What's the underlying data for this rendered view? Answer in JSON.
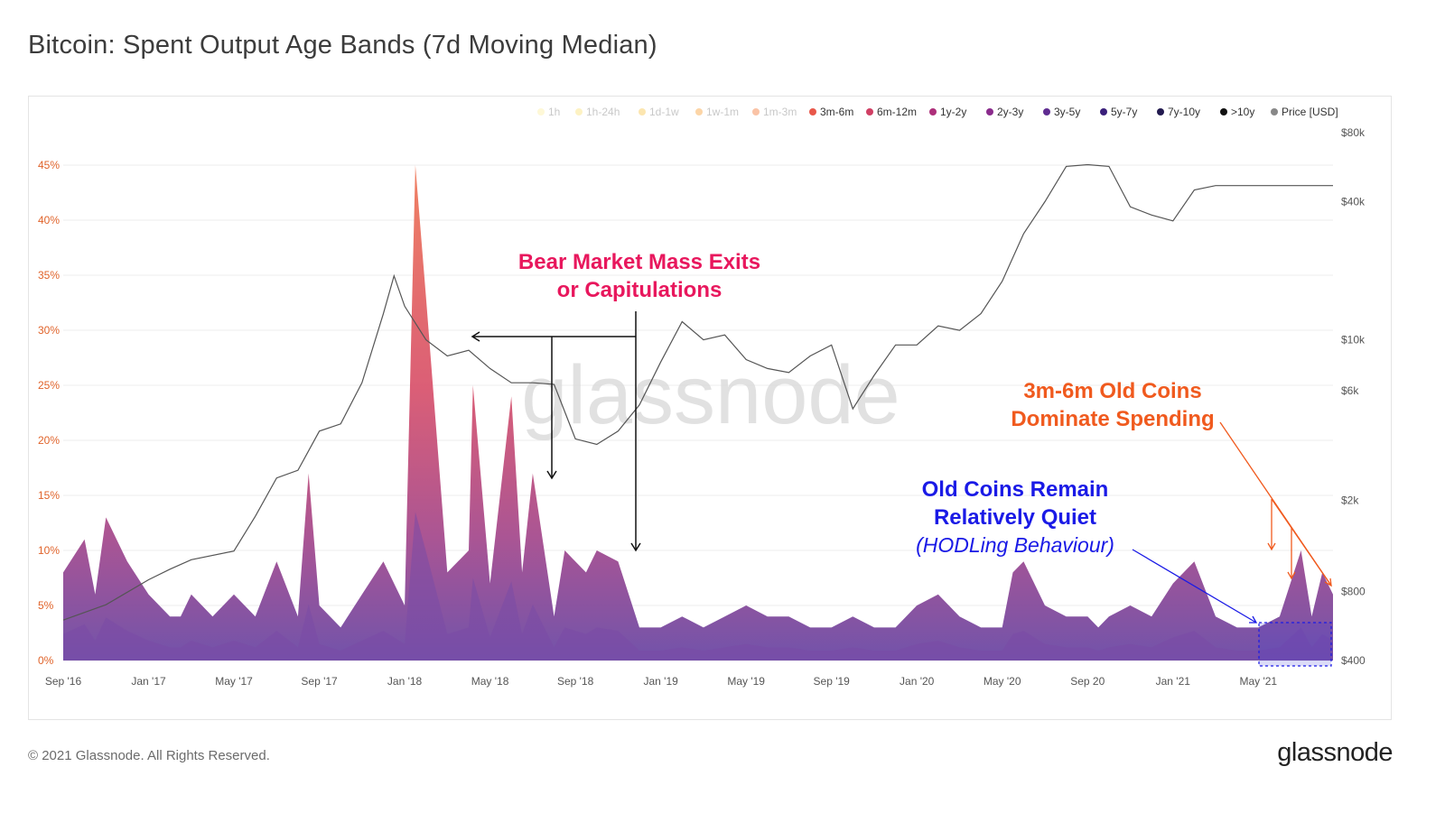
{
  "title": "Bitcoin: Spent Output Age Bands (7d Moving Median)",
  "footer": {
    "copyright": "© 2021 Glassnode. All Rights Reserved.",
    "logo": "glassnode"
  },
  "watermark": "glassnode",
  "colors": {
    "price_line": "#5a5a5a",
    "band_3m6m": "#e8735f",
    "band_6m12m": "#d6567a",
    "band_1y2y": "#b34c8c",
    "band_2y3y": "#8e4e9e",
    "band_3y5y": "#6a4ca8",
    "annotation_bear": "#e8175d",
    "annotation_3m6m": "#f05a1e",
    "annotation_hodl": "#1a1ae6"
  },
  "annotations": {
    "bear_line1": "Bear Market Mass Exits",
    "bear_line2": "or Capitulations",
    "coins_line1": "3m-6m Old Coins",
    "coins_line2": "Dominate Spending",
    "quiet_line1": "Old Coins Remain",
    "quiet_line2": "Relatively Quiet",
    "quiet_line3": "(HODLing Behaviour)"
  },
  "chart_data": {
    "type": "area",
    "title": "Bitcoin: Spent Output Age Bands (7d Moving Median)",
    "legend": [
      {
        "name": "1h",
        "color": "#fdf0a6",
        "faded": true
      },
      {
        "name": "1h-24h",
        "color": "#fbe27a",
        "faded": true
      },
      {
        "name": "1d-1w",
        "color": "#f9c74f",
        "faded": true
      },
      {
        "name": "1w-1m",
        "color": "#f8a23c",
        "faded": true
      },
      {
        "name": "1m-3m",
        "color": "#f47a3a",
        "faded": true
      },
      {
        "name": "3m-6m",
        "color": "#e8574a",
        "faded": false
      },
      {
        "name": "6m-12m",
        "color": "#d03f64",
        "faded": false
      },
      {
        "name": "1y-2y",
        "color": "#ad2f7a",
        "faded": false
      },
      {
        "name": "2y-3y",
        "color": "#8a2b8c",
        "faded": false
      },
      {
        "name": "3y-5y",
        "color": "#5f2c91",
        "faded": false
      },
      {
        "name": "5y-7y",
        "color": "#3a1f7a",
        "faded": false
      },
      {
        "name": "7y-10y",
        "color": "#221a4f",
        "faded": false
      },
      {
        "name": ">10y",
        "color": "#111111",
        "faded": false
      },
      {
        "name": "Price [USD]",
        "color": "#888888",
        "faded": false
      }
    ],
    "legend_placement": "top-right",
    "x_tick_labels": [
      "Sep '16",
      "Jan '17",
      "May '17",
      "Sep '17",
      "Jan '18",
      "May '18",
      "Sep '18",
      "Jan '19",
      "May '19",
      "Sep '19",
      "Jan '20",
      "May '20",
      "Sep 20",
      "Jan '21",
      "May '21"
    ],
    "y_left_tick_labels": [
      "0%",
      "5%",
      "10%",
      "15%",
      "20%",
      "25%",
      "30%",
      "35%",
      "40%",
      "45%"
    ],
    "y_left_range": [
      0,
      45
    ],
    "y_right_tick_labels": [
      "$400",
      "$800",
      "$2k",
      "$6k",
      "$10k",
      "$40k",
      "$80k"
    ],
    "y_right_values": [
      400,
      800,
      2000,
      6000,
      10000,
      40000,
      80000
    ],
    "y_right_scale": "log",
    "x_range_months": [
      0,
      59.5
    ],
    "grid": true,
    "spent_share_3m6m_approx": {
      "x_months": [
        0,
        1,
        1.5,
        2,
        3,
        4,
        5,
        5.5,
        6,
        7,
        8,
        9,
        10,
        11,
        11.5,
        12,
        13,
        14,
        15,
        16,
        16.5,
        17,
        18,
        19,
        19.2,
        20,
        21,
        21.5,
        22,
        23,
        23.5,
        24,
        24.5,
        25,
        26,
        27,
        28,
        29,
        30,
        31,
        32,
        33,
        34,
        35,
        36,
        37,
        38,
        39,
        40,
        41,
        42,
        43,
        44,
        44.5,
        45,
        46,
        47,
        48,
        48.5,
        49,
        50,
        51,
        52,
        53,
        54,
        55,
        56,
        57,
        58,
        58.5,
        59,
        59.5
      ],
      "total_pct": [
        8,
        11,
        6,
        13,
        9,
        6,
        4,
        4,
        6,
        4,
        6,
        4,
        9,
        4,
        17,
        5,
        3,
        6,
        9,
        5,
        45,
        33,
        8,
        10,
        25,
        7,
        24,
        8,
        17,
        4,
        10,
        9,
        8,
        10,
        9,
        3,
        3,
        4,
        3,
        4,
        5,
        4,
        4,
        3,
        3,
        4,
        3,
        3,
        5,
        6,
        4,
        3,
        3,
        8,
        9,
        5,
        4,
        4,
        3,
        4,
        5,
        4,
        7,
        9,
        4,
        3,
        3,
        4,
        10,
        4,
        8,
        6
      ]
    },
    "price_usd_approx": {
      "x_months": [
        0,
        2,
        4,
        5,
        6,
        8,
        9,
        10,
        11,
        12,
        13,
        14,
        15,
        15.5,
        16,
        17,
        18,
        19,
        20,
        21,
        22,
        23,
        24,
        25,
        26,
        27,
        28,
        29,
        30,
        31,
        32,
        33,
        34,
        35,
        36,
        37,
        38,
        39,
        40,
        41,
        42,
        43,
        44,
        45,
        46,
        47,
        48,
        49,
        50,
        51,
        52,
        53,
        54,
        55,
        56,
        57,
        58,
        59,
        59.5
      ],
      "usd": [
        600,
        700,
        900,
        1000,
        1100,
        1200,
        1700,
        2500,
        2700,
        4000,
        4300,
        6500,
        13000,
        19000,
        14000,
        10000,
        8500,
        9000,
        7500,
        6500,
        6500,
        6400,
        3700,
        3500,
        4000,
        5200,
        8000,
        12000,
        10000,
        10500,
        8200,
        7500,
        7200,
        8500,
        9500,
        5000,
        7000,
        9500,
        9500,
        11500,
        11000,
        13000,
        18000,
        29000,
        40000,
        57000,
        58000,
        57000,
        38000,
        35000,
        33000,
        45000,
        47000,
        47000,
        47000,
        47000,
        47000,
        47000,
        47000
      ]
    }
  }
}
